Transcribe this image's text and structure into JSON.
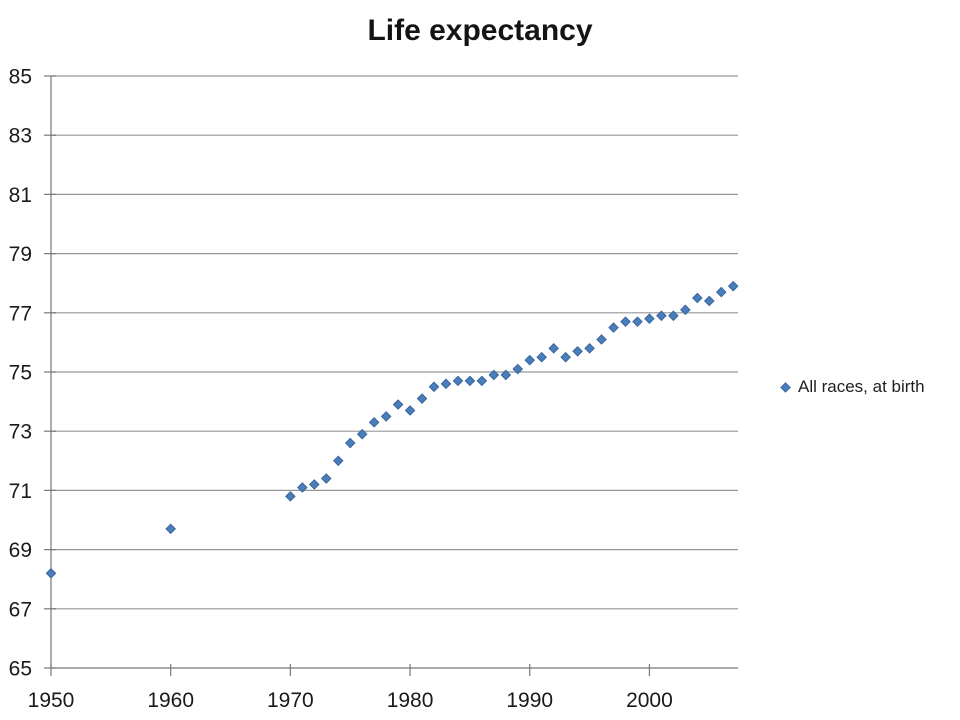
{
  "chart_data": {
    "type": "scatter",
    "title": "Life expectancy",
    "xlabel": "",
    "ylabel": "",
    "xlim": [
      1950,
      2007.4
    ],
    "ylim": [
      65,
      85
    ],
    "x_ticks": [
      1950,
      1960,
      1970,
      1980,
      1990,
      2000
    ],
    "y_ticks": [
      65,
      67,
      69,
      71,
      73,
      75,
      77,
      79,
      81,
      83,
      85
    ],
    "grid": "horizontal-major-only",
    "legend_position": "right",
    "series": [
      {
        "name": "All races, at birth",
        "marker": "diamond",
        "x": [
          1950,
          1960,
          1970,
          1971,
          1972,
          1973,
          1974,
          1975,
          1976,
          1977,
          1978,
          1979,
          1980,
          1981,
          1982,
          1983,
          1984,
          1985,
          1986,
          1987,
          1988,
          1989,
          1990,
          1991,
          1992,
          1993,
          1994,
          1995,
          1996,
          1997,
          1998,
          1999,
          2000,
          2001,
          2002,
          2003,
          2004,
          2005,
          2006,
          2007
        ],
        "y": [
          68.2,
          69.7,
          70.8,
          71.1,
          71.2,
          71.4,
          72.0,
          72.6,
          72.9,
          73.3,
          73.5,
          73.9,
          73.7,
          74.1,
          74.5,
          74.6,
          74.7,
          74.7,
          74.7,
          74.9,
          74.9,
          75.1,
          75.4,
          75.5,
          75.8,
          75.5,
          75.7,
          75.8,
          76.1,
          76.5,
          76.7,
          76.7,
          76.8,
          76.9,
          76.9,
          77.1,
          77.5,
          77.4,
          77.7,
          77.9
        ]
      }
    ]
  },
  "colors": {
    "marker_fill": "#4a7ebb",
    "marker_stroke": "#38659c",
    "gridline": "#969696",
    "axis": "#787878",
    "tick_label": "#1a1a1a",
    "title": "#141414",
    "background": "#ffffff"
  }
}
